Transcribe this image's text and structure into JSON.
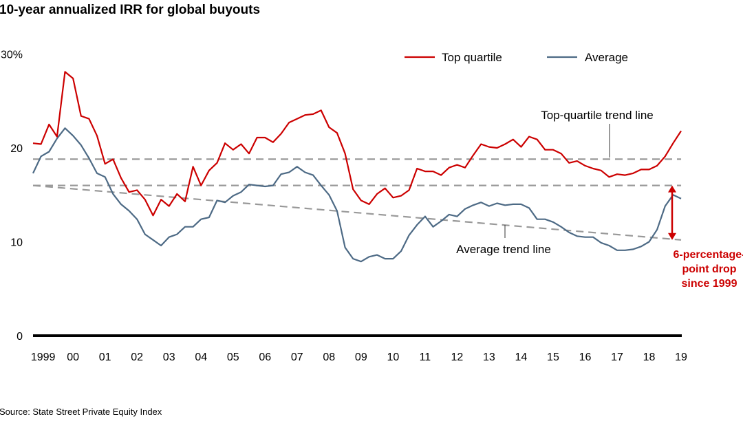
{
  "chart_data": {
    "type": "line",
    "title": "10-year annualized IRR for global buyouts",
    "xlabel": "",
    "ylabel": "",
    "ylim": [
      0,
      30
    ],
    "xlim": [
      1998.75,
      2019.0
    ],
    "y_ticks": [
      "0",
      "10",
      "20",
      "30%"
    ],
    "x_tick_labels": [
      "1999",
      "00",
      "01",
      "02",
      "03",
      "04",
      "05",
      "06",
      "07",
      "08",
      "09",
      "10",
      "11",
      "12",
      "13",
      "14",
      "15",
      "16",
      "17",
      "18",
      "19"
    ],
    "x_start": 1998.75,
    "x_step": 0.25,
    "grid": false,
    "legend_position": "top-right",
    "series": [
      {
        "name": "Top quartile",
        "color": "#cc0000",
        "values": [
          20.5,
          20.4,
          22.5,
          21.2,
          28.1,
          27.4,
          23.4,
          23.1,
          21.3,
          18.3,
          18.8,
          16.8,
          15.3,
          15.5,
          14.5,
          12.8,
          14.5,
          13.8,
          15.1,
          14.3,
          18.0,
          16.0,
          17.6,
          18.4,
          20.5,
          19.8,
          20.4,
          19.4,
          21.1,
          21.1,
          20.6,
          21.5,
          22.7,
          23.1,
          23.5,
          23.6,
          24.0,
          22.2,
          21.6,
          19.4,
          15.6,
          14.4,
          14.0,
          15.1,
          15.7,
          14.7,
          14.9,
          15.5,
          17.8,
          17.5,
          17.5,
          17.1,
          17.9,
          18.2,
          17.9,
          19.2,
          20.4,
          20.1,
          20.0,
          20.4,
          20.9,
          20.1,
          21.2,
          20.9,
          19.8,
          19.8,
          19.4,
          18.4,
          18.6,
          18.1,
          17.8,
          17.6,
          16.9,
          17.2,
          17.1,
          17.3,
          17.7,
          17.7,
          18.1,
          19.1,
          20.5,
          21.8
        ]
      },
      {
        "name": "Average",
        "color": "#4d6a85",
        "values": [
          17.3,
          19.1,
          19.6,
          21.0,
          22.1,
          21.3,
          20.3,
          18.9,
          17.3,
          16.9,
          15.1,
          14.0,
          13.3,
          12.4,
          10.8,
          10.2,
          9.6,
          10.5,
          10.8,
          11.6,
          11.6,
          12.4,
          12.6,
          14.4,
          14.2,
          14.9,
          15.3,
          16.1,
          16.0,
          15.9,
          16.0,
          17.2,
          17.4,
          18.0,
          17.4,
          17.1,
          16.0,
          15.0,
          13.3,
          9.4,
          8.2,
          7.9,
          8.4,
          8.6,
          8.2,
          8.2,
          9.0,
          10.7,
          11.8,
          12.7,
          11.6,
          12.2,
          12.9,
          12.7,
          13.5,
          13.9,
          14.2,
          13.8,
          14.1,
          13.9,
          14.0,
          14.0,
          13.6,
          12.4,
          12.4,
          12.1,
          11.6,
          11.0,
          10.6,
          10.5,
          10.5,
          9.9,
          9.6,
          9.1,
          9.1,
          9.2,
          9.5,
          10.0,
          11.3,
          13.8,
          15.0,
          14.6
        ]
      }
    ],
    "trend_lines": [
      {
        "label": "Top-quartile trend line",
        "start": 18.8,
        "end": 18.8
      },
      {
        "label": "",
        "start": 16.0,
        "end": 16.0
      },
      {
        "label": "Average trend line",
        "start": 16.0,
        "end": 10.2
      }
    ],
    "annotation": {
      "lines": [
        "6-percentage-",
        "point drop",
        "since 1999"
      ],
      "from": 16.0,
      "to": 10.2,
      "color": "#cc0000"
    },
    "source": "Source: State Street Private Equity Index"
  }
}
